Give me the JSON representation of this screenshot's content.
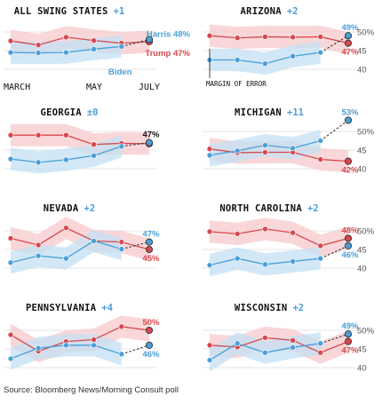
{
  "source": "Source: Bloomberg News/Morning Consult poll",
  "colors": {
    "trump": "#d6484f",
    "harris": "#4a9fd8",
    "trump_band": "#f7c9cb",
    "harris_band": "#c3e0f4"
  },
  "chart_data": [
    {
      "type": "line",
      "title": "ALL SWING STATES",
      "margin_label": "+1",
      "yticks": [],
      "x_tick_labels": [
        "MARCH",
        "MAY",
        "JULY"
      ],
      "series": [
        {
          "name": "Trump",
          "party": "trump",
          "values": [
            47.6,
            46.5,
            48.6,
            47.7,
            47.0,
            47.4
          ],
          "end_label": "Trump 47%"
        },
        {
          "name": "Biden",
          "party": "harris",
          "values": [
            44.5,
            44.4,
            44.5,
            45.4,
            46.1
          ],
          "end_label": "Biden"
        },
        {
          "name": "Harris",
          "party": "harris",
          "start_index": 4,
          "values": [
            46.1,
            48.0
          ],
          "dashed": true,
          "end_label": "Harris 48%"
        }
      ]
    },
    {
      "type": "line",
      "title": "ARIZONA",
      "margin_label": "+2",
      "yticks": [
        "50%",
        "45",
        "40"
      ],
      "annotation": "MARGIN OF ERROR",
      "series": [
        {
          "name": "Trump",
          "party": "trump",
          "values": [
            49.0,
            48.4,
            48.7,
            48.6,
            48.7,
            47.0
          ],
          "end_label": "47%"
        },
        {
          "name": "Biden",
          "party": "harris",
          "values": [
            42.5,
            42.5,
            41.5,
            43.5,
            44.5
          ],
          "end_label": ""
        },
        {
          "name": "Harris",
          "party": "harris",
          "start_index": 4,
          "values": [
            44.5,
            49.0
          ],
          "dashed": true,
          "end_label": "49%"
        }
      ]
    },
    {
      "type": "line",
      "title": "GEORGIA",
      "margin_label": "±0",
      "yticks": [],
      "series": [
        {
          "name": "Trump",
          "party": "trump",
          "values": [
            49.0,
            49.0,
            49.0,
            46.5,
            46.8,
            46.7
          ],
          "end_label": ""
        },
        {
          "name": "Biden",
          "party": "harris",
          "values": [
            42.6,
            41.7,
            42.4,
            43.5,
            46.0
          ],
          "end_label": ""
        },
        {
          "name": "Harris",
          "party": "harris",
          "start_index": 4,
          "values": [
            46.0,
            47.0
          ],
          "dashed": true,
          "end_label": "47%"
        }
      ]
    },
    {
      "type": "line",
      "title": "MICHIGAN",
      "margin_label": "+11",
      "yticks": [
        "50%",
        "45",
        "40"
      ],
      "series": [
        {
          "name": "Trump",
          "party": "trump",
          "values": [
            45.3,
            44.3,
            44.4,
            44.4,
            42.5,
            42.0
          ],
          "end_label": "42%"
        },
        {
          "name": "Biden",
          "party": "harris",
          "values": [
            43.6,
            44.8,
            46.3,
            45.5,
            47.5
          ],
          "end_label": ""
        },
        {
          "name": "Harris",
          "party": "harris",
          "start_index": 4,
          "values": [
            47.5,
            53.0
          ],
          "dashed": true,
          "end_label": "53%"
        }
      ]
    },
    {
      "type": "line",
      "title": "NEVADA",
      "margin_label": "+2",
      "yticks": [],
      "series": [
        {
          "name": "Trump",
          "party": "trump",
          "values": [
            48.0,
            46.2,
            50.8,
            47.3,
            47.0,
            45.0
          ],
          "end_label": "45%"
        },
        {
          "name": "Biden",
          "party": "harris",
          "values": [
            41.5,
            43.3,
            42.6,
            47.3,
            45.1
          ],
          "end_label": ""
        },
        {
          "name": "Harris",
          "party": "harris",
          "start_index": 4,
          "values": [
            45.1,
            47.0
          ],
          "dashed": true,
          "end_label": "47%"
        }
      ]
    },
    {
      "type": "line",
      "title": "NORTH CAROLINA",
      "margin_label": "+2",
      "yticks": [
        "50%",
        "45",
        "40"
      ],
      "series": [
        {
          "name": "Trump",
          "party": "trump",
          "values": [
            49.8,
            49.2,
            50.5,
            49.5,
            46.0,
            48.0
          ],
          "end_label": "48%"
        },
        {
          "name": "Biden",
          "party": "harris",
          "values": [
            40.8,
            42.6,
            41.0,
            41.8,
            42.6
          ],
          "end_label": ""
        },
        {
          "name": "Harris",
          "party": "harris",
          "start_index": 4,
          "values": [
            42.6,
            46.0
          ],
          "dashed": true,
          "end_label": "46%"
        }
      ]
    },
    {
      "type": "line",
      "title": "PENNSYLVANIA",
      "margin_label": "+4",
      "yticks": [],
      "series": [
        {
          "name": "Trump",
          "party": "trump",
          "values": [
            48.8,
            44.4,
            47.0,
            47.5,
            51.0,
            50.0
          ],
          "end_label": "50%"
        },
        {
          "name": "Biden",
          "party": "harris",
          "values": [
            42.4,
            45.2,
            46.0,
            46.0,
            43.6
          ],
          "end_label": ""
        },
        {
          "name": "Harris",
          "party": "harris",
          "start_index": 4,
          "values": [
            43.6,
            46.0
          ],
          "dashed": true,
          "end_label": "46%"
        }
      ]
    },
    {
      "type": "line",
      "title": "WISCONSIN",
      "margin_label": "+2",
      "yticks": [
        "50%",
        "45",
        "40"
      ],
      "series": [
        {
          "name": "Trump",
          "party": "trump",
          "values": [
            46.0,
            45.5,
            48.0,
            47.3,
            44.0,
            47.0
          ],
          "end_label": "47%"
        },
        {
          "name": "Biden",
          "party": "harris",
          "values": [
            42.0,
            46.5,
            44.0,
            45.4,
            46.5
          ],
          "end_label": ""
        },
        {
          "name": "Harris",
          "party": "harris",
          "start_index": 4,
          "values": [
            46.5,
            49.0
          ],
          "dashed": true,
          "end_label": "49%"
        }
      ]
    }
  ]
}
